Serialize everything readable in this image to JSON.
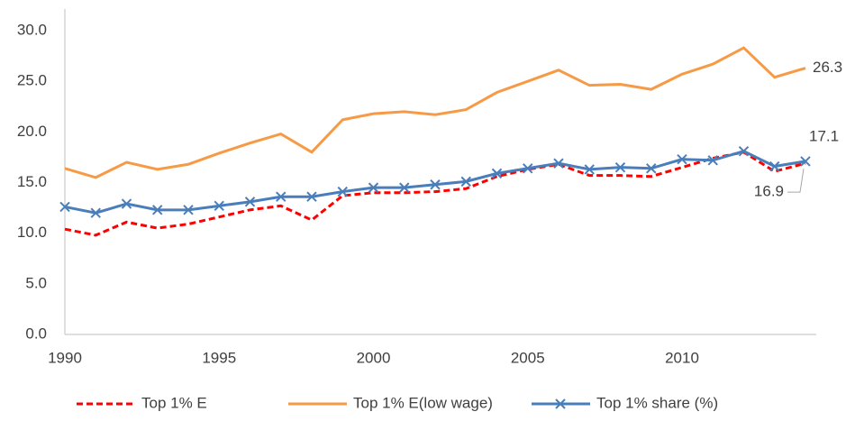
{
  "chart_data": {
    "type": "line",
    "x": [
      1990,
      1991,
      1992,
      1993,
      1994,
      1995,
      1996,
      1997,
      1998,
      1999,
      2000,
      2001,
      2002,
      2003,
      2004,
      2005,
      2006,
      2007,
      2008,
      2009,
      2010,
      2011,
      2012,
      2013,
      2014
    ],
    "series": [
      {
        "name": "Top 1% E",
        "color": "#ff0000",
        "dash": true,
        "values": [
          10.4,
          9.8,
          11.1,
          10.5,
          10.9,
          11.6,
          12.3,
          12.7,
          11.3,
          13.7,
          14.0,
          14.0,
          14.1,
          14.4,
          15.6,
          16.3,
          16.8,
          15.7,
          15.7,
          15.6,
          16.5,
          17.4,
          18.0,
          16.1,
          16.9
        ]
      },
      {
        "name": "Top 1% E(low wage)",
        "color": "#f79a46",
        "values": [
          16.4,
          15.5,
          17.0,
          16.3,
          16.8,
          17.9,
          18.9,
          19.8,
          18.0,
          21.2,
          21.8,
          22.0,
          21.7,
          22.2,
          23.9,
          25.0,
          26.1,
          24.6,
          24.7,
          24.2,
          25.7,
          26.7,
          28.3,
          25.4,
          26.3
        ]
      },
      {
        "name": "Top 1% share (%)",
        "color": "#4a7ebb",
        "marker": "x",
        "values": [
          12.6,
          12.0,
          12.9,
          12.3,
          12.3,
          12.7,
          13.1,
          13.6,
          13.6,
          14.1,
          14.5,
          14.5,
          14.8,
          15.1,
          15.9,
          16.4,
          16.9,
          16.3,
          16.5,
          16.4,
          17.3,
          17.2,
          18.1,
          16.6,
          17.1
        ]
      }
    ],
    "xlim": [
      1990,
      2014
    ],
    "xticks": [
      1990,
      1995,
      2000,
      2005,
      2010
    ],
    "ylim": [
      0,
      30
    ],
    "yticks": [
      {
        "value": 0,
        "label": "0.0"
      },
      {
        "value": 5,
        "label": "5.0"
      },
      {
        "value": 10,
        "label": "10.0"
      },
      {
        "value": 15,
        "label": "15.0"
      },
      {
        "value": 20,
        "label": "20.0"
      },
      {
        "value": 25,
        "label": "25.0"
      },
      {
        "value": 30,
        "label": "30.0"
      }
    ],
    "grid": false,
    "legend": "bottom"
  }
}
